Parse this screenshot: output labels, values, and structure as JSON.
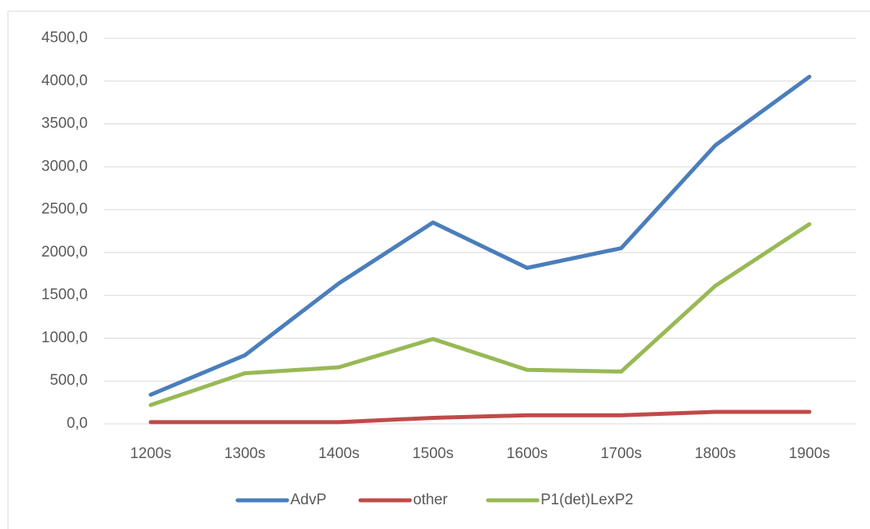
{
  "chart_data": {
    "type": "line",
    "categories": [
      "1200s",
      "1300s",
      "1400s",
      "1500s",
      "1600s",
      "1700s",
      "1800s",
      "1900s"
    ],
    "series": [
      {
        "name": "AdvP",
        "color": "#4a7ebb",
        "values": [
          340,
          800,
          1640,
          2350,
          1820,
          2050,
          3250,
          4050
        ]
      },
      {
        "name": "other",
        "color": "#be4b48",
        "values": [
          20,
          20,
          20,
          70,
          100,
          100,
          140,
          140
        ]
      },
      {
        "name": "P1(det)LexP2",
        "color": "#98b954",
        "values": [
          220,
          590,
          660,
          990,
          630,
          610,
          1610,
          2330
        ]
      }
    ],
    "ylim": [
      0,
      4500
    ],
    "yticks": [
      {
        "value": 0,
        "label": "0,0"
      },
      {
        "value": 500,
        "label": "500,0"
      },
      {
        "value": 1000,
        "label": "1000,0"
      },
      {
        "value": 1500,
        "label": "1500,0"
      },
      {
        "value": 2000,
        "label": "2000,0"
      },
      {
        "value": 2500,
        "label": "2500,0"
      },
      {
        "value": 3000,
        "label": "3000,0"
      },
      {
        "value": 3500,
        "label": "3500,0"
      },
      {
        "value": 4000,
        "label": "4000,0"
      },
      {
        "value": 4500,
        "label": "4500,0"
      }
    ],
    "grid": true,
    "legend": "bottom"
  }
}
